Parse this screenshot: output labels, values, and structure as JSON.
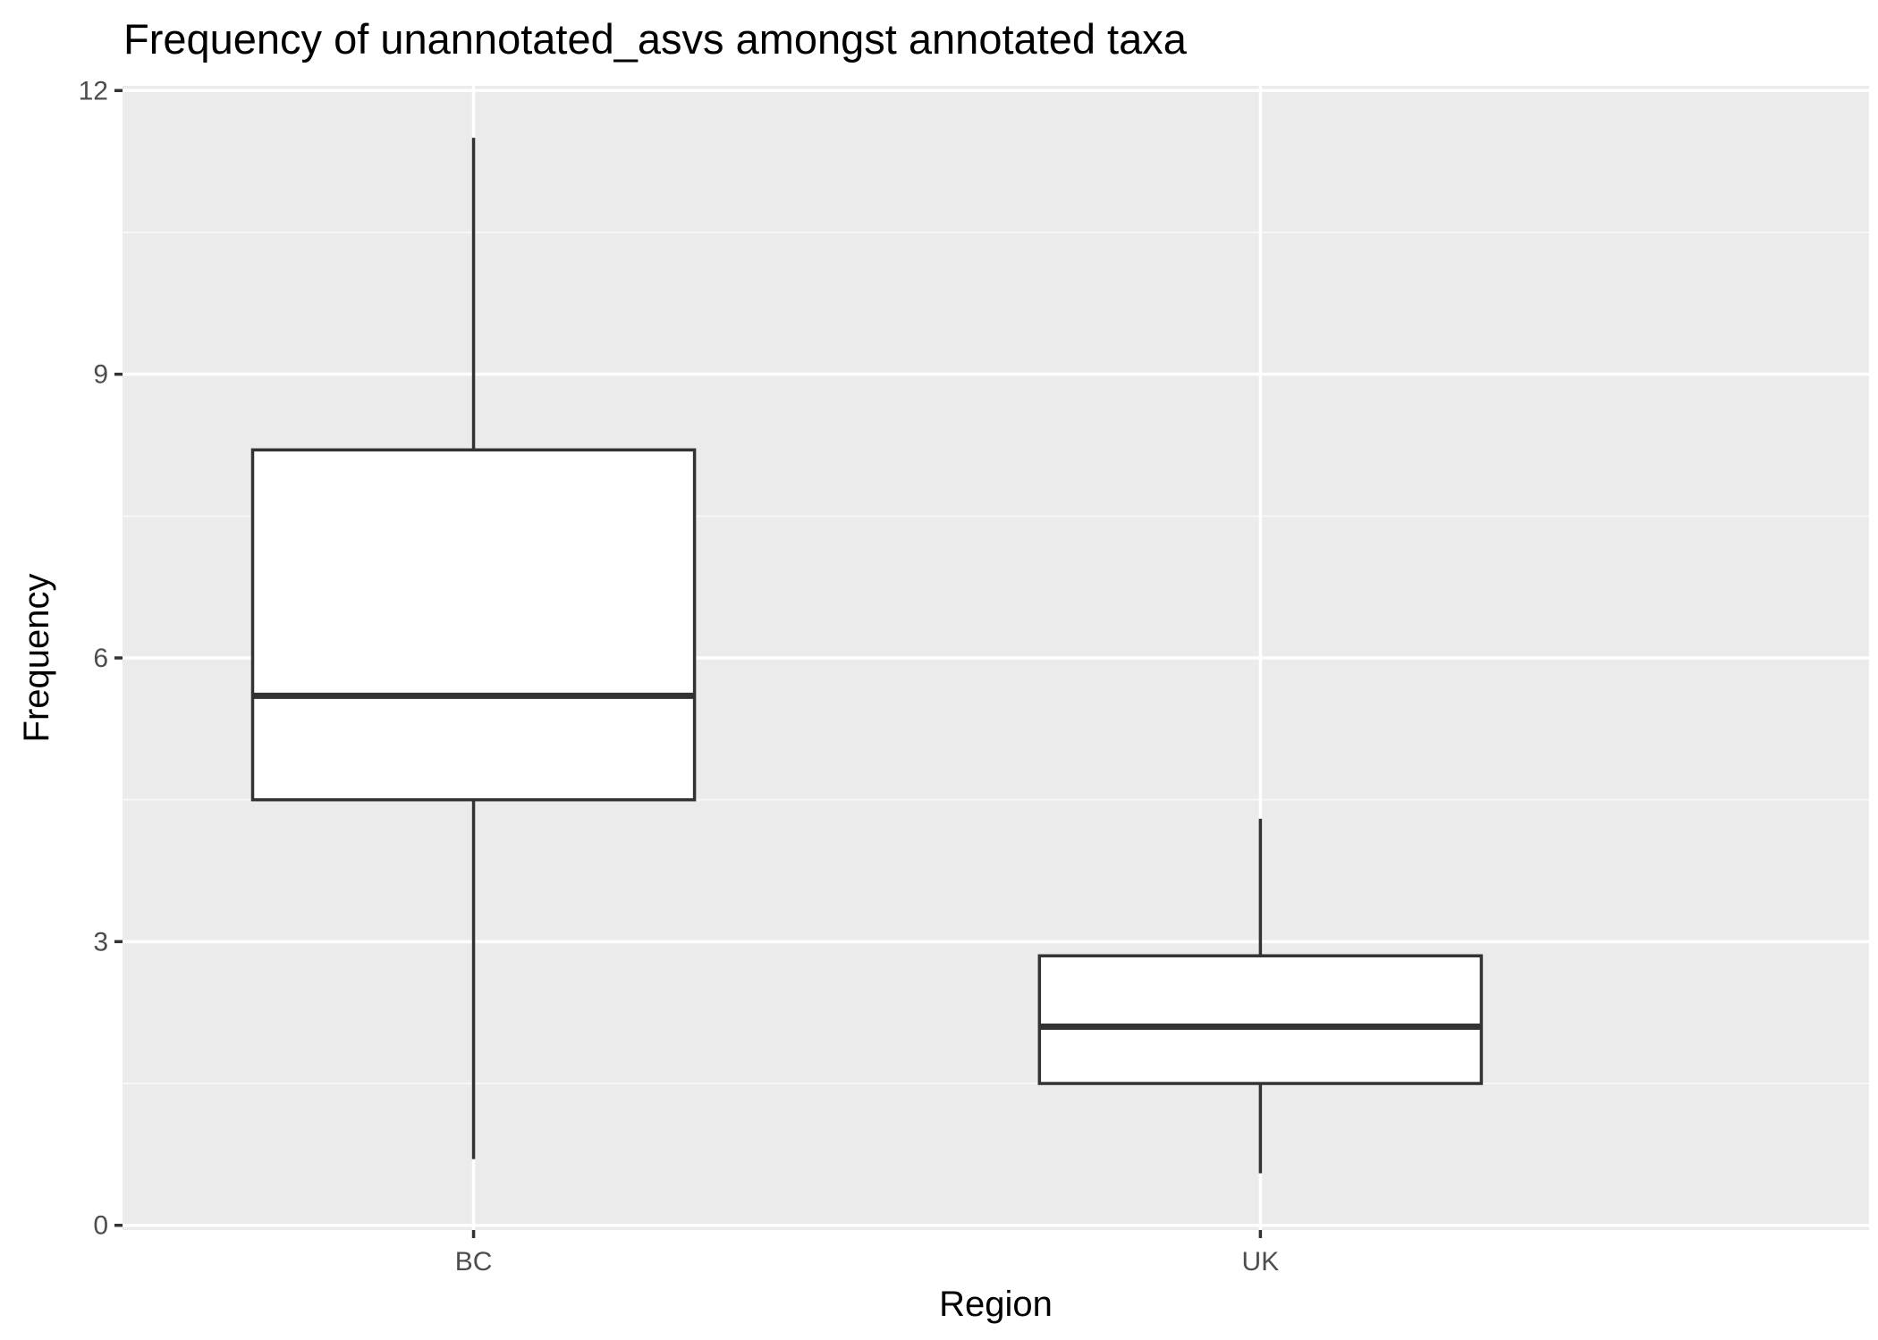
{
  "chart_data": {
    "type": "boxplot",
    "title": "Frequency of unannotated_asvs amongst annotated taxa",
    "xlabel": "Region",
    "ylabel": "Frequency",
    "categories": [
      "BC",
      "UK"
    ],
    "boxes": [
      {
        "category": "BC",
        "whisker_low": 0.7,
        "q1": 4.5,
        "median": 5.6,
        "q3": 8.2,
        "whisker_high": 11.5
      },
      {
        "category": "UK",
        "whisker_low": 0.55,
        "q1": 1.5,
        "median": 2.1,
        "q3": 2.85,
        "whisker_high": 4.3
      }
    ],
    "y_ticks": [
      0,
      3,
      6,
      9,
      12
    ],
    "ylim": [
      -0.05,
      12.05
    ],
    "grid": true,
    "legend": "none",
    "colors": {
      "panel_background": "#ebebeb",
      "grid_major": "#ffffff",
      "grid_minor": "#f7f7f7",
      "box_fill": "#ffffff",
      "box_stroke": "#333333",
      "tick_text": "#4d4d4d",
      "axis_ticks": "#333333"
    }
  }
}
